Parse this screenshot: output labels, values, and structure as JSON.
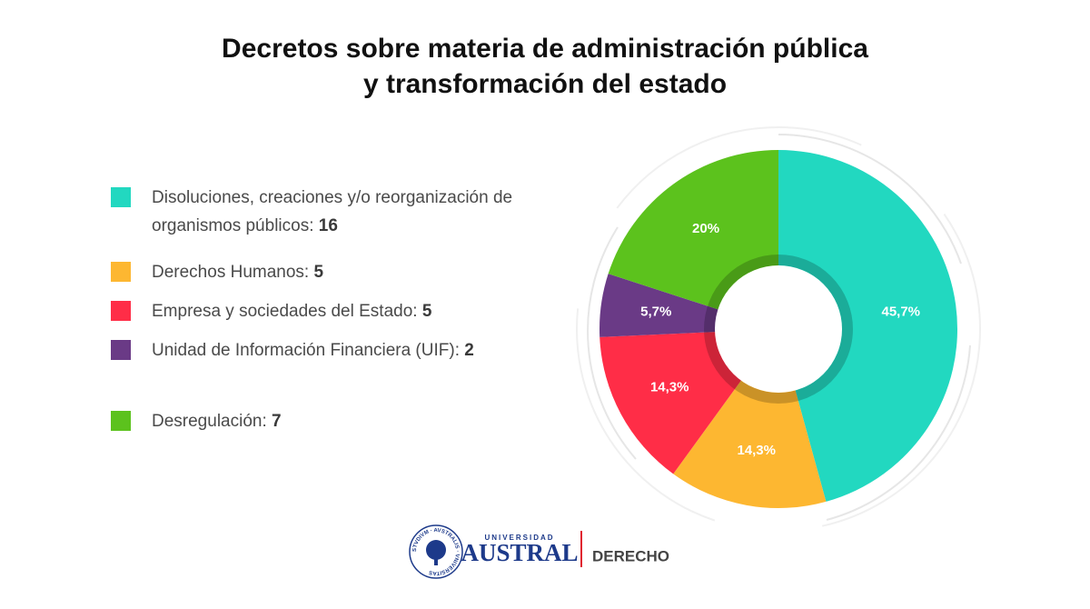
{
  "chart_data": {
    "type": "donut",
    "title": [
      "Decretos sobre materia de administración pública",
      "y transformación del estado"
    ],
    "categories": [
      "Disoluciones, creaciones y/o reorganización de organismos públicos:",
      "Derechos Humanos:",
      "Empresa y sociedades del Estado:",
      "Unidad de Información Financiera (UIF):",
      "Desregulación:"
    ],
    "values": [
      16,
      5,
      5,
      2,
      7
    ],
    "value_labels": [
      "45,7%",
      "14,3%",
      "14,3%",
      "5,7%",
      "20%"
    ],
    "colors": [
      "#22d8c0",
      "#fdb731",
      "#ff2d47",
      "#6a3a86",
      "#5cc21d"
    ],
    "legend": "left"
  },
  "footer": {
    "seal": "STVDIVM · AVSTRALIS · VNIVERSITAS",
    "university_small": "UNIVERSIDAD",
    "university": "AUSTRAL",
    "faculty": "DERECHO"
  }
}
